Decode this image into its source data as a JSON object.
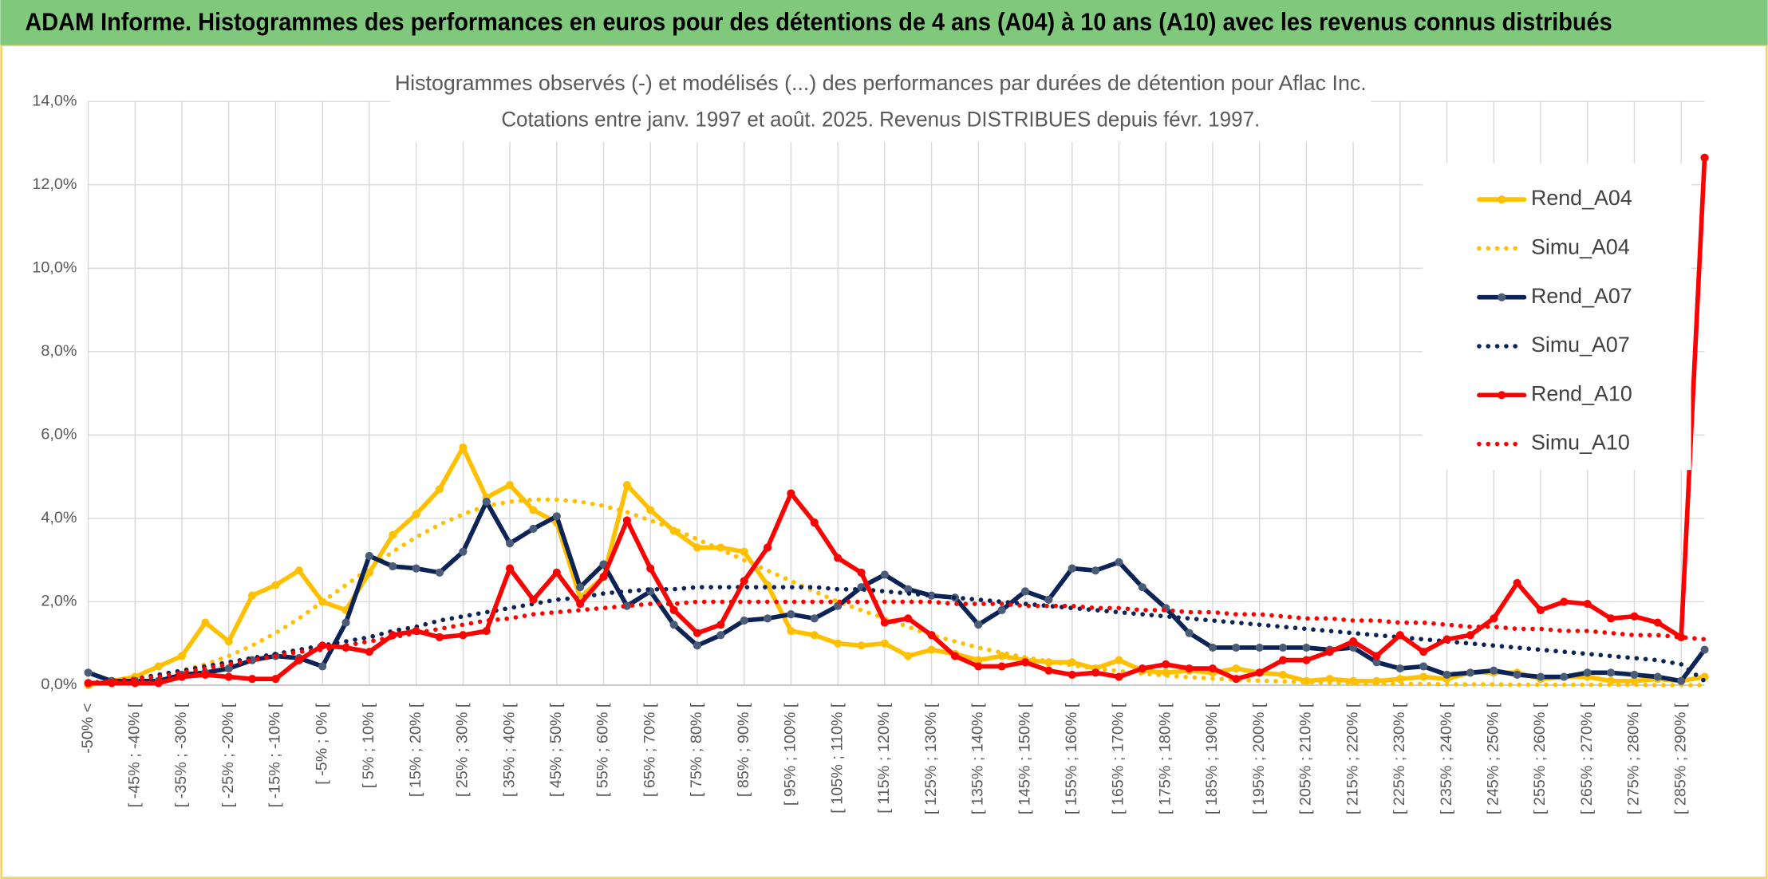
{
  "header": "ADAM Informe. Histogrammes des performances en euros pour des détentions de 4 ans (A04) à 10 ans (A10) avec les revenus connus distribués",
  "chart_data": {
    "type": "line",
    "title": "Histogrammes observés (-) et modélisés (...) des performances par durées de détention pour Aflac Inc.",
    "subtitle": "Cotations entre janv. 1997 et août. 2025. Revenus DISTRIBUES depuis févr. 1997.",
    "categories": [
      "-50% <",
      null,
      "[ -45% ; -40% [",
      null,
      "[ -35% ; -30% [",
      null,
      "[ -25% ; -20% [",
      null,
      "[ -15% ; -10% [",
      null,
      "[ -5% ; 0% [",
      null,
      "[ 5% ; 10% [",
      null,
      "[ 15% ; 20% [",
      null,
      "[ 25% ; 30% [",
      null,
      "[ 35% ; 40% [",
      null,
      "[ 45% ; 50% [",
      null,
      "[ 55% ; 60% [",
      null,
      "[ 65% ; 70% [",
      null,
      "[ 75% ; 80% [",
      null,
      "[ 85% ; 90% [",
      null,
      "[ 95% ; 100% [",
      null,
      "[ 105% ; 110% [",
      null,
      "[ 115% ; 120% [",
      null,
      "[ 125% ; 130% [",
      null,
      "[ 135% ; 140% [",
      null,
      "[ 145% ; 150% [",
      null,
      "[ 155% ; 160% [",
      null,
      "[ 165% ; 170% [",
      null,
      "[ 175% ; 180% [",
      null,
      "[ 185% ; 190% [",
      null,
      "[ 195% ; 200% [",
      null,
      "[ 205% ; 210% [",
      null,
      "[ 215% ; 220% [",
      null,
      "[ 225% ; 230% [",
      null,
      "[ 235% ; 240% [",
      null,
      "[ 245% ; 250% [",
      null,
      "[ 255% ; 260% [",
      null,
      "[ 265% ; 270% [",
      null,
      "[ 275% ; 280% [",
      null,
      "[ 285% ; 290% [",
      null
    ],
    "ylim": [
      0,
      14
    ],
    "yticks": [
      {
        "value": 0,
        "label": "0,0%"
      },
      {
        "value": 2,
        "label": "2,0%"
      },
      {
        "value": 4,
        "label": "4,0%"
      },
      {
        "value": 6,
        "label": "6,0%"
      },
      {
        "value": 8,
        "label": "8,0%"
      },
      {
        "value": 10,
        "label": "10,0%"
      },
      {
        "value": 12,
        "label": "12,0%"
      },
      {
        "value": 14,
        "label": "14,0%"
      }
    ],
    "grid": true,
    "legend": "right",
    "series": [
      {
        "name": "Rend_A04",
        "color": "#ffc000",
        "style": "solid",
        "markers": true,
        "marker_color": "#ffc000",
        "values": [
          0.0,
          0.1,
          0.2,
          0.45,
          0.7,
          1.5,
          1.05,
          2.15,
          2.4,
          2.75,
          2.0,
          1.8,
          2.7,
          3.6,
          4.1,
          4.7,
          5.7,
          4.5,
          4.8,
          4.2,
          3.9,
          2.1,
          2.6,
          4.8,
          4.2,
          3.7,
          3.3,
          3.3,
          3.2,
          2.4,
          1.3,
          1.2,
          1.0,
          0.95,
          1.0,
          0.7,
          0.85,
          0.75,
          0.6,
          0.7,
          0.6,
          0.55,
          0.55,
          0.4,
          0.6,
          0.35,
          0.3,
          0.35,
          0.3,
          0.4,
          0.3,
          0.25,
          0.1,
          0.15,
          0.1,
          0.1,
          0.15,
          0.2,
          0.15,
          0.3,
          0.3,
          0.3,
          0.15,
          0.2,
          0.2,
          0.1,
          0.1,
          0.15,
          0.1,
          0.2
        ]
      },
      {
        "name": "Simu_A04",
        "color": "#ffc000",
        "style": "dotted",
        "markers": false,
        "values": [
          0.05,
          0.1,
          0.15,
          0.25,
          0.35,
          0.5,
          0.7,
          0.95,
          1.25,
          1.6,
          2.0,
          2.4,
          2.8,
          3.2,
          3.55,
          3.85,
          4.1,
          4.3,
          4.4,
          4.45,
          4.45,
          4.4,
          4.3,
          4.15,
          3.95,
          3.75,
          3.5,
          3.25,
          3.0,
          2.75,
          2.5,
          2.25,
          2.0,
          1.8,
          1.6,
          1.4,
          1.2,
          1.05,
          0.9,
          0.78,
          0.67,
          0.57,
          0.48,
          0.4,
          0.34,
          0.28,
          0.23,
          0.19,
          0.16,
          0.13,
          0.11,
          0.09,
          0.07,
          0.06,
          0.05,
          0.04,
          0.03,
          0.03,
          0.02,
          0.02,
          0.02,
          0.01,
          0.01,
          0.01,
          0.01,
          0.01,
          0.01,
          0.0,
          0.0,
          0.0
        ]
      },
      {
        "name": "Rend_A07",
        "color": "#0b2356",
        "style": "solid",
        "markers": true,
        "marker_color": "#4a5c78",
        "values": [
          0.3,
          0.1,
          0.1,
          0.1,
          0.25,
          0.3,
          0.4,
          0.6,
          0.7,
          0.65,
          0.45,
          1.5,
          3.1,
          2.85,
          2.8,
          2.7,
          3.2,
          4.4,
          3.4,
          3.75,
          4.05,
          2.35,
          2.9,
          1.9,
          2.25,
          1.45,
          0.95,
          1.2,
          1.55,
          1.6,
          1.7,
          1.6,
          1.9,
          2.35,
          2.65,
          2.3,
          2.15,
          2.1,
          1.45,
          1.8,
          2.25,
          2.05,
          2.8,
          2.75,
          2.95,
          2.35,
          1.85,
          1.25,
          0.9,
          0.9,
          0.9,
          0.9,
          0.9,
          0.85,
          0.9,
          0.55,
          0.4,
          0.45,
          0.25,
          0.3,
          0.35,
          0.25,
          0.2,
          0.2,
          0.3,
          0.3,
          0.25,
          0.2,
          0.1,
          0.85
        ]
      },
      {
        "name": "Simu_A07",
        "color": "#0b2356",
        "style": "dotted",
        "markers": false,
        "values": [
          0.05,
          0.1,
          0.15,
          0.25,
          0.35,
          0.45,
          0.55,
          0.65,
          0.75,
          0.85,
          0.95,
          1.05,
          1.15,
          1.3,
          1.4,
          1.55,
          1.65,
          1.75,
          1.85,
          1.95,
          2.05,
          2.1,
          2.2,
          2.25,
          2.3,
          2.3,
          2.35,
          2.35,
          2.35,
          2.35,
          2.35,
          2.35,
          2.3,
          2.3,
          2.25,
          2.2,
          2.15,
          2.1,
          2.05,
          2.0,
          1.95,
          1.9,
          1.85,
          1.8,
          1.75,
          1.7,
          1.65,
          1.6,
          1.55,
          1.5,
          1.45,
          1.4,
          1.35,
          1.3,
          1.25,
          1.2,
          1.15,
          1.1,
          1.05,
          1.0,
          0.95,
          0.9,
          0.85,
          0.8,
          0.75,
          0.7,
          0.65,
          0.6,
          0.5,
          0.1
        ]
      },
      {
        "name": "Rend_A10",
        "color": "#ff0000",
        "style": "solid",
        "markers": true,
        "marker_color": "#ff0000",
        "values": [
          0.05,
          0.05,
          0.05,
          0.05,
          0.2,
          0.25,
          0.2,
          0.15,
          0.15,
          0.6,
          0.95,
          0.9,
          0.8,
          1.2,
          1.3,
          1.15,
          1.2,
          1.3,
          2.8,
          2.05,
          2.7,
          1.95,
          2.6,
          3.95,
          2.8,
          1.8,
          1.25,
          1.45,
          2.5,
          3.3,
          4.6,
          3.9,
          3.05,
          2.7,
          1.5,
          1.6,
          1.2,
          0.7,
          0.45,
          0.45,
          0.55,
          0.35,
          0.25,
          0.3,
          0.2,
          0.4,
          0.5,
          0.4,
          0.4,
          0.15,
          0.3,
          0.6,
          0.6,
          0.8,
          1.05,
          0.7,
          1.2,
          0.8,
          1.1,
          1.2,
          1.6,
          2.45,
          1.8,
          2.0,
          1.95,
          1.6,
          1.65,
          1.5,
          1.15,
          12.65
        ]
      },
      {
        "name": "Simu_A10",
        "color": "#ff0000",
        "style": "dotted",
        "markers": false,
        "values": [
          0.05,
          0.1,
          0.15,
          0.2,
          0.3,
          0.4,
          0.5,
          0.6,
          0.7,
          0.8,
          0.85,
          0.95,
          1.05,
          1.15,
          1.25,
          1.35,
          1.45,
          1.55,
          1.6,
          1.7,
          1.75,
          1.8,
          1.85,
          1.9,
          1.95,
          1.95,
          2.0,
          2.0,
          2.0,
          2.0,
          2.0,
          2.0,
          2.0,
          2.0,
          2.0,
          2.0,
          2.0,
          1.95,
          1.95,
          1.95,
          1.9,
          1.9,
          1.9,
          1.85,
          1.85,
          1.8,
          1.8,
          1.75,
          1.75,
          1.7,
          1.7,
          1.65,
          1.6,
          1.6,
          1.55,
          1.55,
          1.5,
          1.5,
          1.45,
          1.4,
          1.4,
          1.35,
          1.35,
          1.3,
          1.3,
          1.25,
          1.2,
          1.2,
          1.15,
          1.1
        ]
      }
    ]
  }
}
